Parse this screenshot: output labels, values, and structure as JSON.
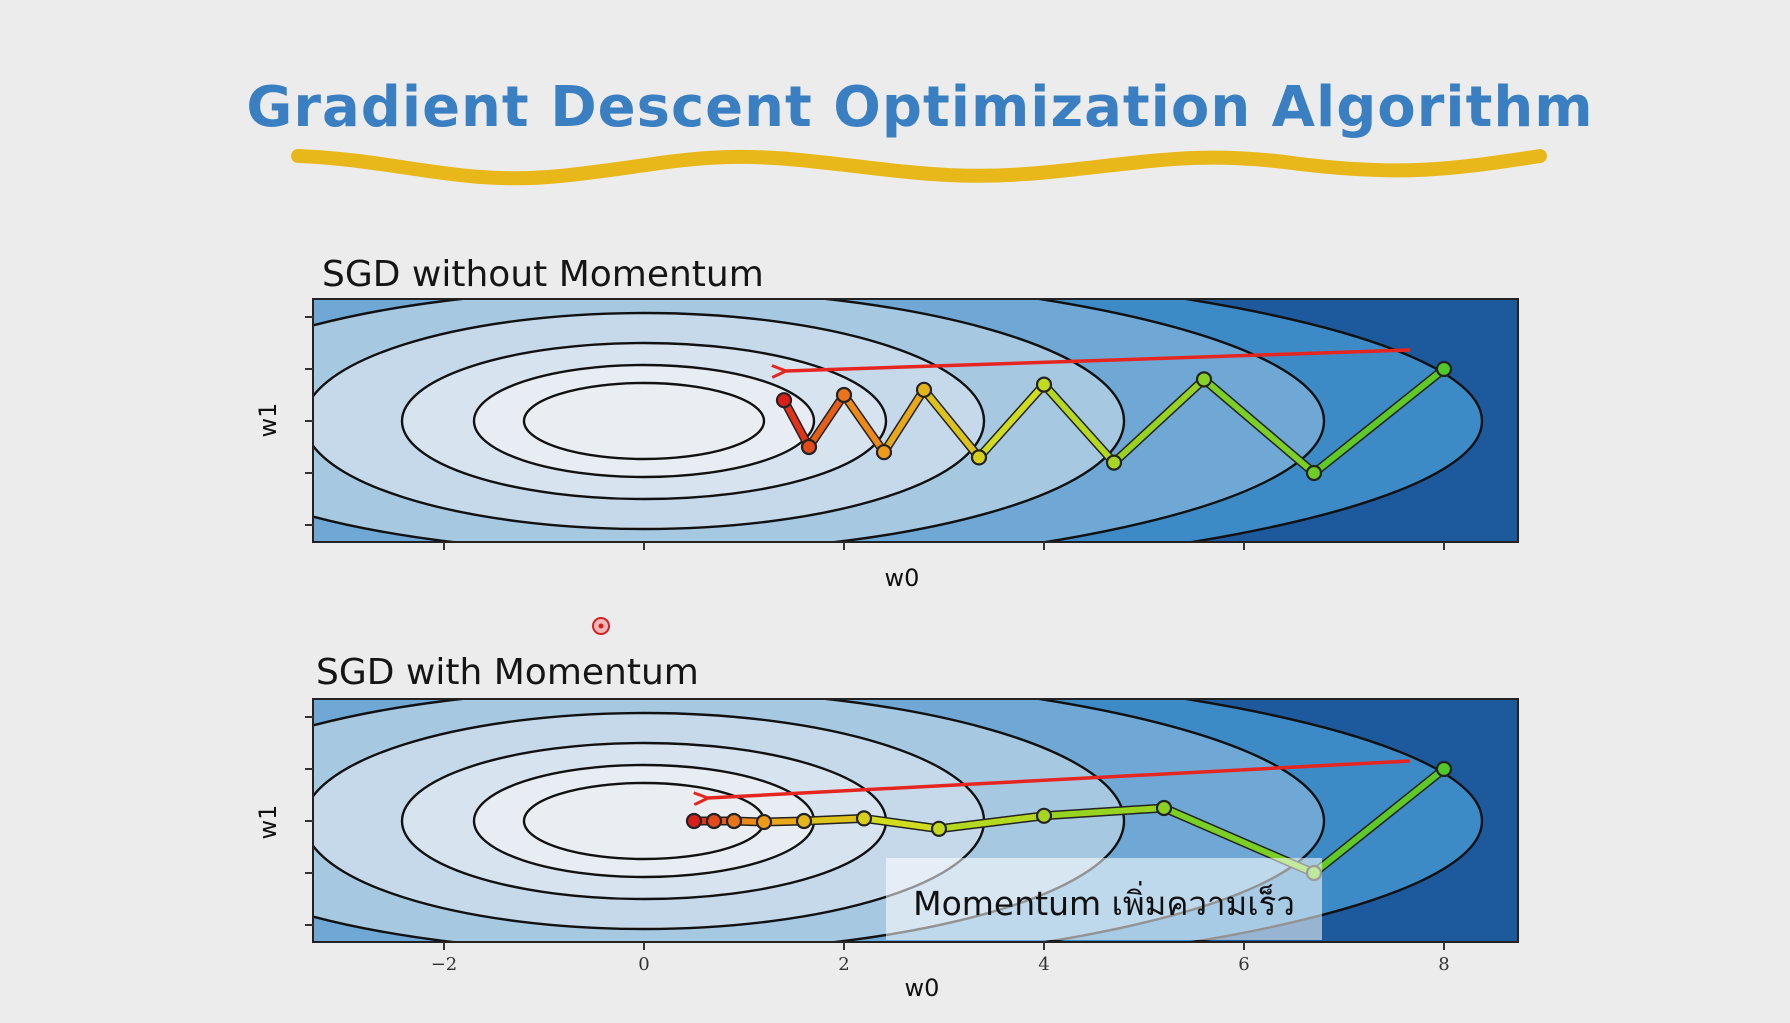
{
  "title": "Gradient Descent Optimization Algorithm",
  "colors": {
    "title": "#3a7fc1",
    "underline": "#e8b81a",
    "arrow": "#e52620",
    "contour_line": "#111111",
    "fill_levels": [
      "#e8edf3",
      "#d7e4f0",
      "#c6d9eb",
      "#a6c8e0",
      "#6fa8d4",
      "#3d8bc6",
      "#1c5a9d"
    ]
  },
  "panels": [
    {
      "title": "SGD without Momentum",
      "xlabel": "w0",
      "ylabel": "w1",
      "path": [
        [
          8.0,
          1.0
        ],
        [
          6.7,
          -1.0
        ],
        [
          5.6,
          0.8
        ],
        [
          4.7,
          -0.8
        ],
        [
          4.0,
          0.7
        ],
        [
          3.35,
          -0.7
        ],
        [
          2.8,
          0.6
        ],
        [
          2.4,
          -0.6
        ],
        [
          2.0,
          0.5
        ],
        [
          1.65,
          -0.5
        ],
        [
          1.4,
          0.4
        ]
      ],
      "caption": ""
    },
    {
      "title": "SGD with Momentum",
      "xlabel": "w0",
      "ylabel": "w1",
      "path": [
        [
          8.0,
          1.0
        ],
        [
          6.7,
          -1.0
        ],
        [
          5.2,
          0.25
        ],
        [
          4.0,
          0.1
        ],
        [
          2.95,
          -0.15
        ],
        [
          2.2,
          0.05
        ],
        [
          1.6,
          0.0
        ],
        [
          1.2,
          -0.02
        ],
        [
          0.9,
          0.0
        ],
        [
          0.7,
          0.0
        ],
        [
          0.5,
          0.0
        ]
      ],
      "caption": "Momentum เพิ่มความเร็ว"
    }
  ],
  "x_ticks": [
    "−2",
    "0",
    "2",
    "4",
    "6",
    "8"
  ]
}
